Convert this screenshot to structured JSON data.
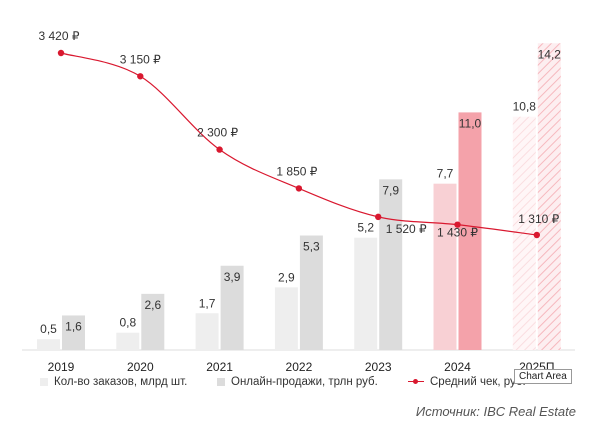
{
  "chart_data": {
    "type": "bar",
    "categories": [
      "2019",
      "2020",
      "2021",
      "2022",
      "2023",
      "2024",
      "2025П"
    ],
    "series": [
      {
        "name": "Кол-во заказов, млрд шт.",
        "values": [
          0.5,
          0.8,
          1.7,
          2.9,
          5.2,
          7.7,
          10.8
        ],
        "labels": [
          "0,5",
          "0,8",
          "1,7",
          "2,9",
          "5,2",
          "7,7",
          "10,8"
        ]
      },
      {
        "name": "Онлайн-продажи, трлн руб.",
        "values": [
          1.6,
          2.6,
          3.9,
          5.3,
          7.9,
          11.0,
          14.2
        ],
        "labels": [
          "1,6",
          "2,6",
          "3,9",
          "5,3",
          "7,9",
          "11,0",
          "14,2"
        ]
      },
      {
        "name": "Средний чек, руб.",
        "type": "line",
        "values": [
          3420,
          3150,
          2300,
          1850,
          1520,
          1430,
          1310
        ],
        "labels": [
          "3 420 ₽",
          "3 150 ₽",
          "2 300 ₽",
          "1 850 ₽",
          "1 520 ₽",
          "1 430 ₽",
          "1 310 ₽"
        ]
      }
    ],
    "colors": {
      "orders": "#eeeeee",
      "sales": "#dcdcdc",
      "orders_2024": "#f8d0d4",
      "sales_2024": "#f4a2aa",
      "forecast_hatch": "#f6b8be",
      "avg_check": "#d9182f"
    },
    "ylim_bars": [
      0,
      15
    ],
    "ylim_line": [
      0,
      3600
    ],
    "grid": false,
    "legend_position": "bottom",
    "tooltip": "Chart Area",
    "source": "Источник: IBC Real Estate"
  }
}
